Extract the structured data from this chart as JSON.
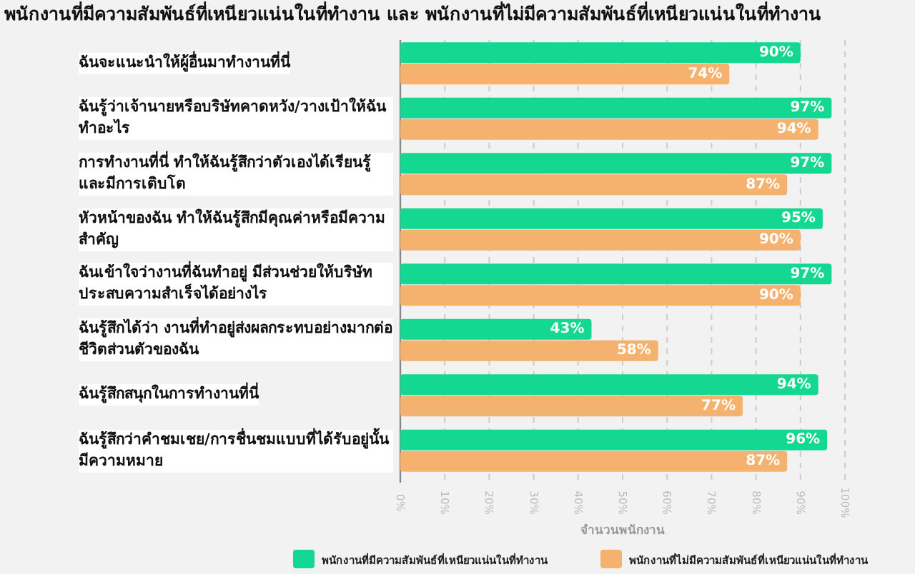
{
  "chart_data": {
    "type": "bar",
    "orientation": "horizontal",
    "title": "พนักงานที่มีความสัมพันธ์ที่เหนียวแน่นในที่ทำงาน และ พนักงานที่ไม่มีความสัมพันธ์ที่เหนียวแน่นในที่ทำงาน",
    "xlabel": "จำนวนพนักงาน",
    "categories": [
      "ฉันจะแนะนำให้ผู้อื่นมาทำงานที่นี่",
      "ฉันรู้ว่าเจ้านายหรือบริษัทคาดหวัง/วางเป้าให้ฉันทำอะไร",
      "การทำงานที่นี่ ทำให้ฉันรู้สึกว่าตัวเองได้เรียนรู้และมีการเติบโต",
      "หัวหน้าของฉัน ทำให้ฉันรู้สึกมีคุณค่าหรือมีความสำคัญ",
      "ฉันเข้าใจว่างานที่ฉันทำอยู่ มีส่วนช่วยให้บริษัทประสบความสำเร็จได้อย่างไร",
      "ฉันรู้สึกได้ว่า งานที่ทำอยู่ส่งผลกระทบอย่างมากต่อชีวิตส่วนตัวของฉัน",
      "ฉันรู้สึกสนุกในการทำงานที่นี่",
      "ฉันรู้สึกว่าคำชมเชย/การชื่นชมแบบที่ได้รับอยู่นั้นมีความหมาย"
    ],
    "series": [
      {
        "name": "พนักงานที่มีความสัมพันธ์ที่เหนียวแน่นในที่ทำงาน",
        "color": "#14d891",
        "values": [
          90,
          97,
          97,
          95,
          97,
          43,
          94,
          96
        ]
      },
      {
        "name": "พนักงานที่ไม่มีความสัมพันธ์ที่เหนียวแน่นในที่ทำงาน",
        "color": "#f5b16e",
        "values": [
          74,
          94,
          87,
          90,
          90,
          58,
          77,
          87
        ]
      }
    ],
    "value_labels": [
      [
        "90%",
        "97%",
        "97%",
        "95%",
        "97%",
        "43%",
        "94%",
        "96%"
      ],
      [
        "74%",
        "94%",
        "87%",
        "90%",
        "90%",
        "58%",
        "77%",
        "87%"
      ]
    ],
    "xlim": [
      0,
      100
    ],
    "xticks": [
      {
        "value": 0,
        "label": "0%"
      },
      {
        "value": 10,
        "label": "10%"
      },
      {
        "value": 20,
        "label": "20%"
      },
      {
        "value": 30,
        "label": "30%"
      },
      {
        "value": 40,
        "label": "40%"
      },
      {
        "value": 50,
        "label": "50%"
      },
      {
        "value": 60,
        "label": "60%"
      },
      {
        "value": 70,
        "label": "70%"
      },
      {
        "value": 80,
        "label": "80%"
      },
      {
        "value": 90,
        "label": "90%"
      },
      {
        "value": 100,
        "label": "100%"
      }
    ],
    "grid": "x",
    "legend": "bottom"
  }
}
